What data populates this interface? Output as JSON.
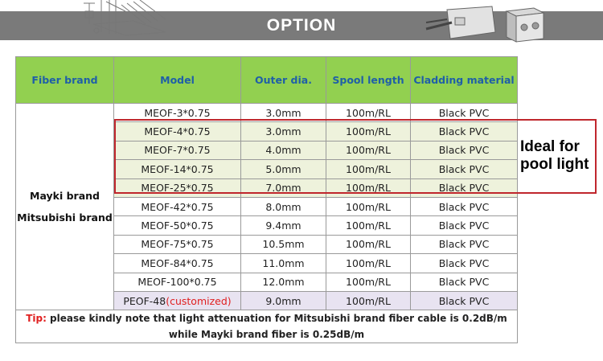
{
  "banner": {
    "title": "OPTION"
  },
  "table": {
    "headers": [
      "Fiber brand",
      "Model",
      "Outer dia.",
      "Spool length",
      "Cladding material"
    ],
    "brand_lines": [
      "Mayki brand",
      "Mitsubishi brand"
    ],
    "rows": [
      {
        "model": "MEOF-3*0.75",
        "dia": "3.0mm",
        "spool": "100m/RL",
        "clad": "Black PVC"
      },
      {
        "model": "MEOF-4*0.75",
        "dia": "3.0mm",
        "spool": "100m/RL",
        "clad": "Black PVC"
      },
      {
        "model": "MEOF-7*0.75",
        "dia": "4.0mm",
        "spool": "100m/RL",
        "clad": "Black PVC"
      },
      {
        "model": "MEOF-14*0.75",
        "dia": "5.0mm",
        "spool": "100m/RL",
        "clad": "Black PVC"
      },
      {
        "model": "MEOF-25*0.75",
        "dia": "7.0mm",
        "spool": "100m/RL",
        "clad": "Black PVC"
      },
      {
        "model": "MEOF-42*0.75",
        "dia": "8.0mm",
        "spool": "100m/RL",
        "clad": "Black PVC"
      },
      {
        "model": "MEOF-50*0.75",
        "dia": "9.4mm",
        "spool": "100m/RL",
        "clad": "Black PVC"
      },
      {
        "model": "MEOF-75*0.75",
        "dia": "10.5mm",
        "spool": "100m/RL",
        "clad": "Black PVC"
      },
      {
        "model": "MEOF-84*0.75",
        "dia": "11.0mm",
        "spool": "100m/RL",
        "clad": "Black PVC"
      },
      {
        "model": "MEOF-100*0.75",
        "dia": "12.0mm",
        "spool": "100m/RL",
        "clad": "Black PVC"
      },
      {
        "model": "PEOF-48",
        "model_suffix": "(customized)",
        "dia": "9.0mm",
        "spool": "100m/RL",
        "clad": "Black PVC"
      }
    ],
    "tip_label": "Tip:",
    "tip_text": " please kindly note that light attenuation for Mitsubishi brand fiber cable is 0.2dB/m while Mayki brand fiber is 0.25dB/m"
  },
  "callout": {
    "line1": "Ideal for",
    "line2": "pool light"
  },
  "colors": {
    "header_bg": "#92d050",
    "header_text": "#1f5fa8",
    "highlight_border": "#c0272d",
    "customized_text": "#e02020",
    "tip_label": "#e02020",
    "banner_bg": "#7a7a7a"
  }
}
